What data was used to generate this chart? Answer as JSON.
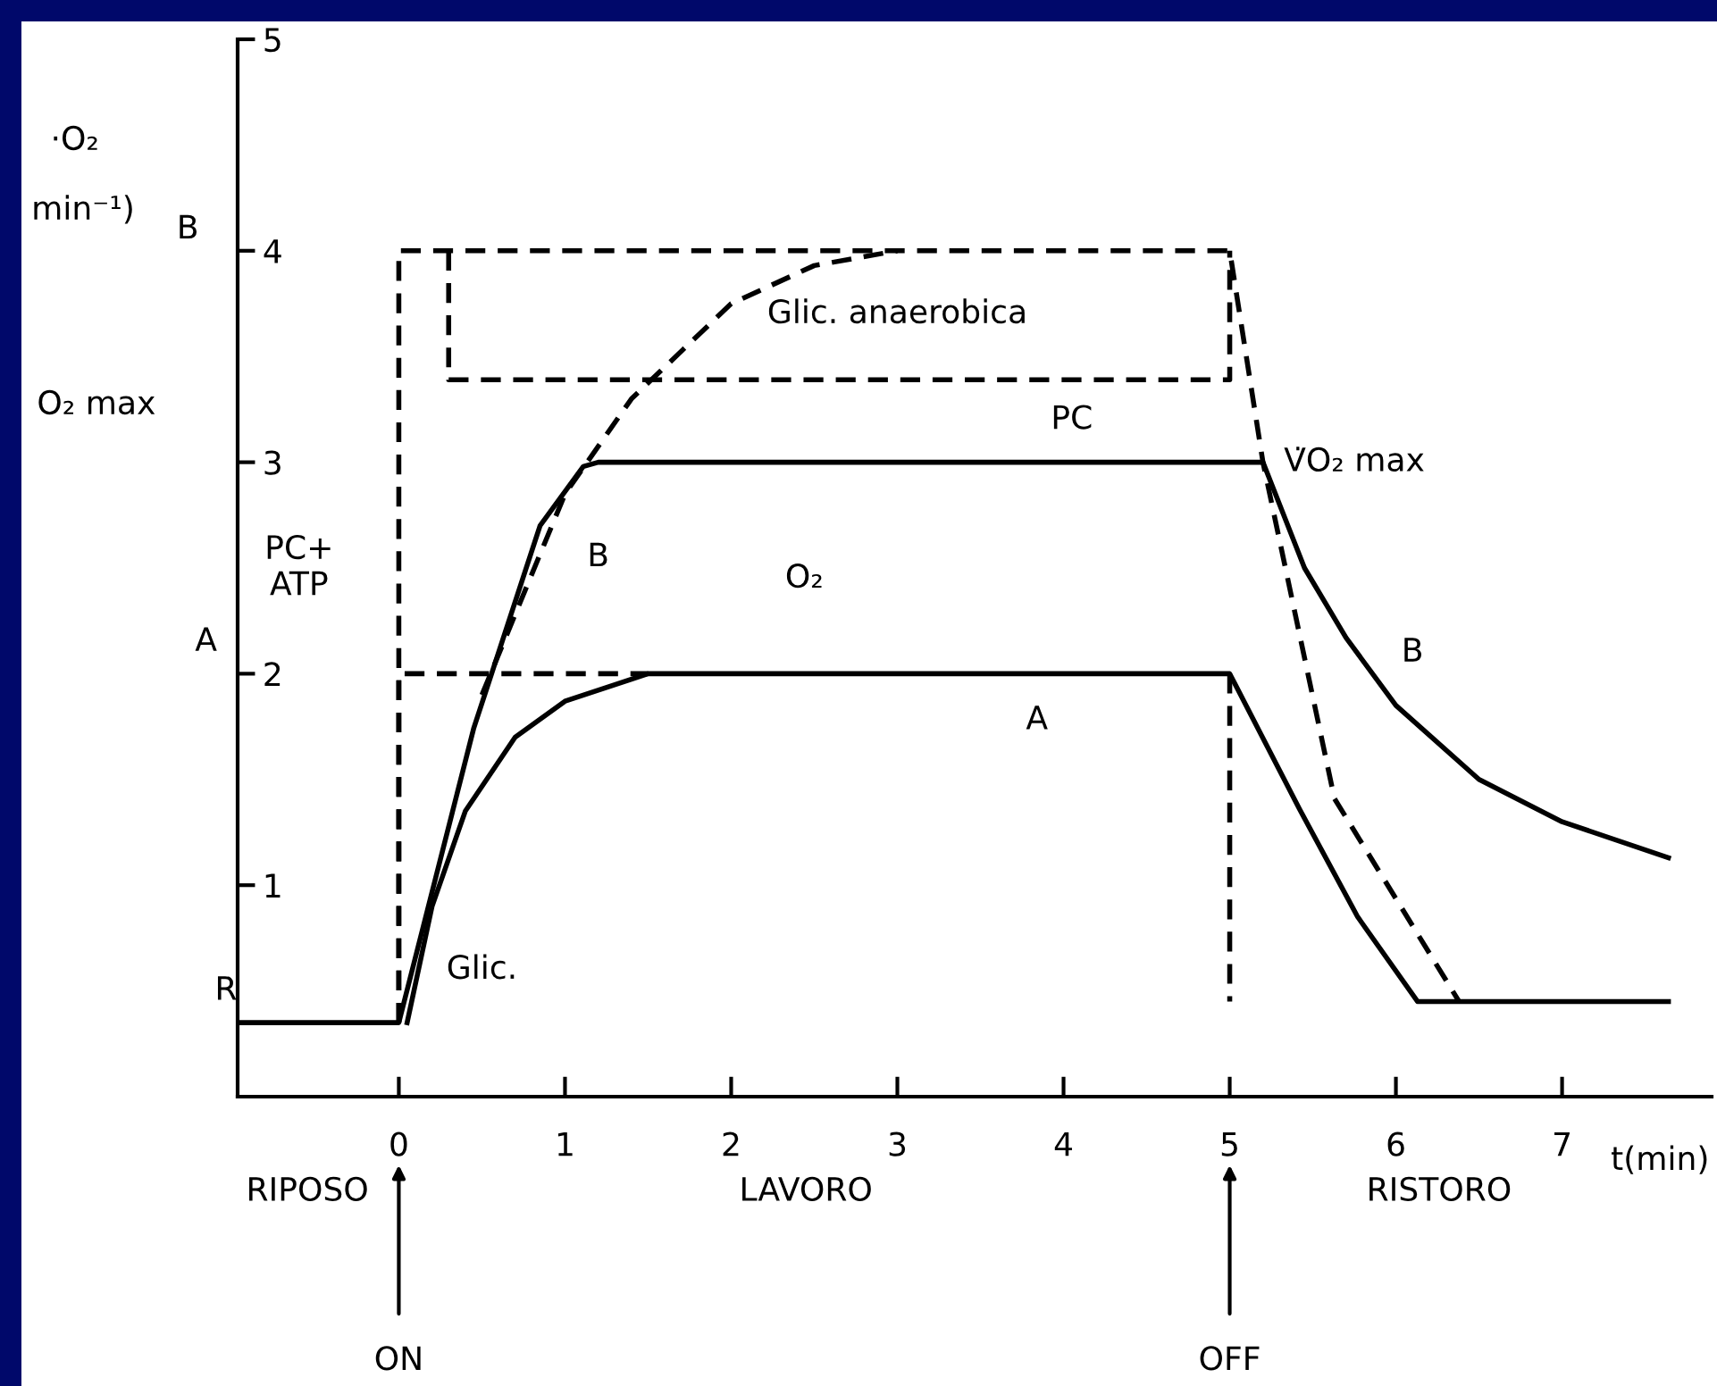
{
  "chart_data": {
    "type": "line",
    "xlabel": "t(min)",
    "xlim": [
      -0.97,
      7.9
    ],
    "ylim": [
      0,
      5
    ],
    "xticks": [
      0,
      1,
      2,
      3,
      4,
      5,
      6,
      7
    ],
    "yticks": [
      1,
      2,
      3,
      4,
      5
    ],
    "grid": false,
    "legend": false,
    "series": [
      {
        "color": "#000000",
        "line_style": "solid",
        "x": [
          -0.97,
          0,
          0.45,
          0.85,
          1.11,
          1.2,
          5.2,
          5.45,
          5.7,
          6.0,
          6.5,
          7.0,
          7.64
        ],
        "values": [
          0.35,
          0.35,
          1.74,
          2.7,
          2.98,
          3.0,
          3.0,
          2.5,
          2.17,
          1.85,
          1.5,
          1.3,
          1.13
        ]
      },
      {
        "color": "#000000",
        "line_style": "solid",
        "x": [
          0.05,
          0.2,
          0.4,
          0.7,
          1.0,
          1.5,
          5.0,
          5.42,
          5.77,
          6.13,
          7.64
        ],
        "values": [
          0.35,
          0.9,
          1.35,
          1.7,
          1.87,
          2.0,
          2.0,
          1.36,
          0.85,
          0.45,
          0.45
        ]
      },
      {
        "color": "#000000",
        "line_style": "dashed",
        "x": [
          0,
          0,
          5,
          5.2,
          5.63,
          6.38
        ],
        "values": [
          0.35,
          4,
          4,
          3,
          1.41,
          0.45
        ]
      },
      {
        "color": "#000000",
        "line_style": "dashed",
        "x": [
          0,
          0,
          1.5
        ],
        "values": [
          0.35,
          2,
          2
        ]
      },
      {
        "color": "#000000",
        "line_style": "dashed",
        "x": [
          5,
          5
        ],
        "values": [
          2,
          0.45
        ]
      },
      {
        "color": "#000000",
        "line_style": "dashed",
        "x": [
          0.3,
          0.3,
          5,
          5
        ],
        "values": [
          4,
          3.39,
          3.39,
          4
        ]
      },
      {
        "color": "#000000",
        "line_style": "dashed",
        "x": [
          0.5,
          1.0,
          1.4,
          2.0,
          2.5,
          3.0
        ],
        "values": [
          1.9,
          2.85,
          3.3,
          3.75,
          3.93,
          4.0
        ]
      }
    ],
    "annotations": [
      "Glic. anaerobica",
      "PC",
      "V̇O₂ max",
      "PC+\nATP",
      "B",
      "O₂",
      "A",
      "B",
      "Glic.",
      "·O₂",
      "min⁻¹)",
      "B",
      "O₂ max",
      "A",
      "R",
      "RIPOSO",
      "LAVORO",
      "RISTORO",
      "ON",
      "OFF"
    ]
  }
}
